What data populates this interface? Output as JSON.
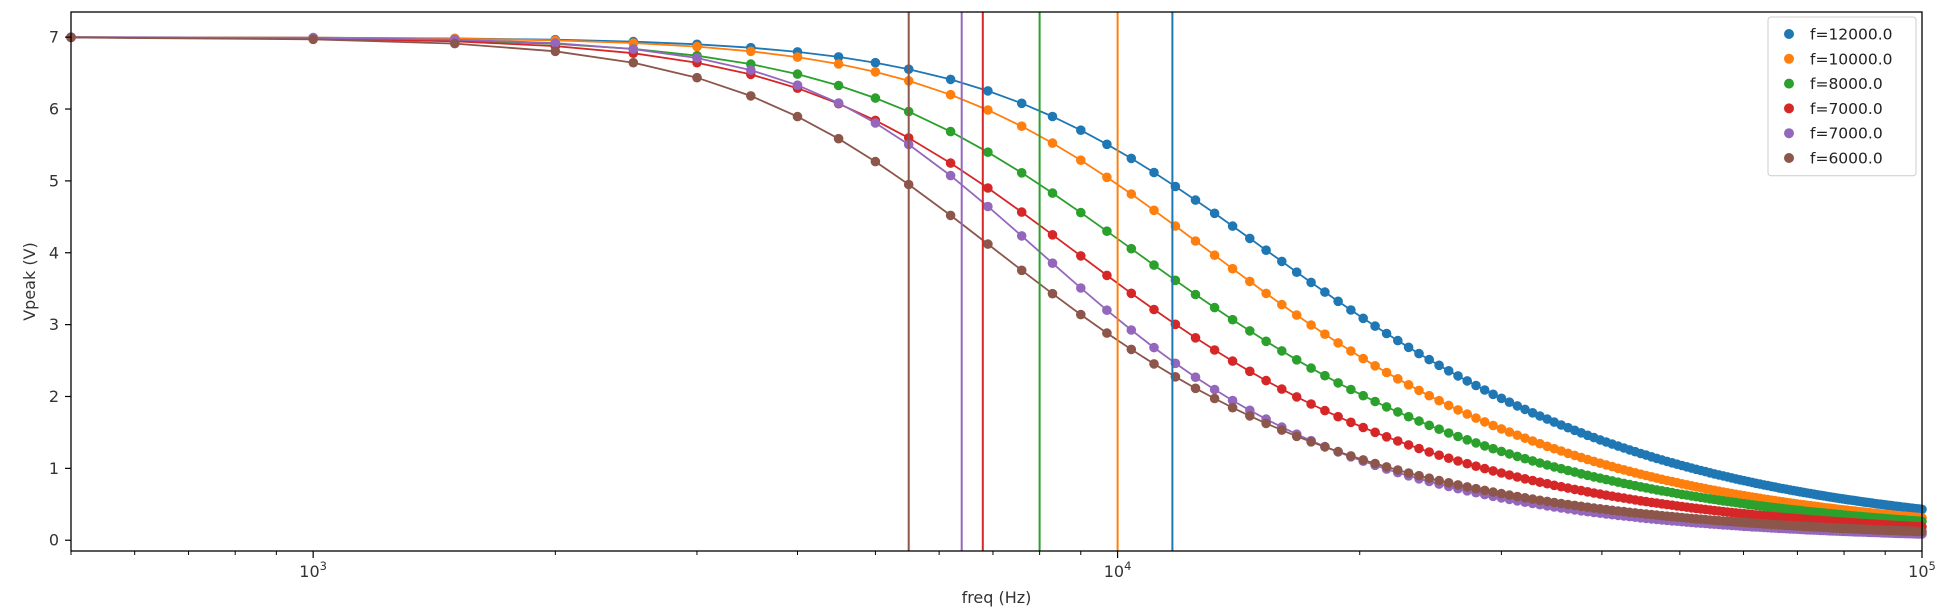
{
  "chart_data": {
    "type": "line",
    "title": "",
    "xlabel": "freq (Hz)",
    "ylabel": "Vpeak (V)",
    "xscale": "log",
    "xlim": [
      500,
      100000
    ],
    "ylim": [
      -0.15,
      7.35
    ],
    "xticks": [
      {
        "value": 1000,
        "base": "10",
        "exp": "3"
      },
      {
        "value": 10000,
        "base": "10",
        "exp": "4"
      },
      {
        "value": 100000,
        "base": "10",
        "exp": "5"
      }
    ],
    "yticks": [
      0,
      1,
      2,
      3,
      4,
      5,
      6,
      7
    ],
    "grid": false,
    "legend_position": "top-right",
    "series": [
      {
        "name": "f=12000.0",
        "color": "#1f77b4",
        "cutoff": 11700,
        "vmax": 7.0,
        "falloff": 1.3
      },
      {
        "name": "f=10000.0",
        "color": "#ff7f0e",
        "cutoff": 10000,
        "vmax": 7.0,
        "falloff": 1.35
      },
      {
        "name": "f=8000.0",
        "color": "#2ca02c",
        "cutoff": 8000,
        "vmax": 7.0,
        "falloff": 1.3
      },
      {
        "name": "f=7000.0",
        "color": "#d62728",
        "cutoff": 6800,
        "vmax": 7.0,
        "falloff": 1.35
      },
      {
        "name": "f=7000.0",
        "color": "#9467bd",
        "cutoff": 6400,
        "vmax": 7.0,
        "falloff": 1.6
      },
      {
        "name": "f=6000.0",
        "color": "#8c564b",
        "cutoff": 5500,
        "vmax": 7.0,
        "falloff": 1.4
      }
    ]
  }
}
